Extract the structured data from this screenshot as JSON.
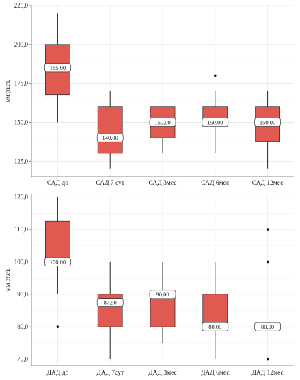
{
  "chart_data": [
    {
      "type": "boxplot",
      "ylabel": "мм рт.ст.",
      "ylim": [
        115,
        225
      ],
      "yticks": [
        125,
        150,
        175,
        200,
        225
      ],
      "ytick_labels": [
        "125,0",
        "150,0",
        "175,0",
        "200,0",
        "225,0"
      ],
      "grid": true,
      "box_color": "#e05a52",
      "categories": [
        "САД до",
        "САД 7 сут",
        "САД 3мес",
        "САД 6мес",
        "САД 12мес"
      ],
      "boxes": [
        {
          "whisker_low": 150,
          "q1": 167.5,
          "median": 185,
          "q3": 200,
          "whisker_high": 220,
          "outliers": [],
          "median_label": "185,00"
        },
        {
          "whisker_low": 120,
          "q1": 130,
          "median": 140,
          "q3": 160,
          "whisker_high": 170,
          "outliers": [],
          "median_label": "140,00"
        },
        {
          "whisker_low": 130,
          "q1": 140,
          "median": 150,
          "q3": 160,
          "whisker_high": 160,
          "outliers": [],
          "median_label": "150,00"
        },
        {
          "whisker_low": 130,
          "q1": 147.5,
          "median": 150,
          "q3": 160,
          "whisker_high": 170,
          "outliers": [
            180
          ],
          "median_label": "150,00"
        },
        {
          "whisker_low": 120,
          "q1": 137.5,
          "median": 150,
          "q3": 160,
          "whisker_high": 170,
          "outliers": [],
          "median_label": "150,00"
        }
      ]
    },
    {
      "type": "boxplot",
      "ylabel": "мм рт.ст.",
      "ylim": [
        68,
        121
      ],
      "yticks": [
        70,
        80,
        90,
        100,
        110,
        120
      ],
      "ytick_labels": [
        "70,0",
        "80,0",
        "90,0",
        "100,0",
        "110,0",
        "120,0"
      ],
      "grid": true,
      "box_color": "#e05a52",
      "categories": [
        "ДАД до",
        "ДАД 7сут",
        "ДАД 3мес",
        "ДАД 6мес",
        "ДАД 12мес"
      ],
      "boxes": [
        {
          "whisker_low": 90,
          "q1": 100,
          "median": 100,
          "q3": 112.5,
          "whisker_high": 120,
          "outliers": [
            80
          ],
          "median_label": "100,00"
        },
        {
          "whisker_low": 70,
          "q1": 80,
          "median": 87.5,
          "q3": 90,
          "whisker_high": 100,
          "outliers": [],
          "median_label": "87,50"
        },
        {
          "whisker_low": 75,
          "q1": 80,
          "median": 90,
          "q3": 90,
          "whisker_high": 100,
          "outliers": [],
          "median_label": "90,00"
        },
        {
          "whisker_low": 70,
          "q1": 80,
          "median": 80,
          "q3": 90,
          "whisker_high": 100,
          "outliers": [],
          "median_label": "80,00"
        },
        {
          "whisker_low": 80,
          "q1": 80,
          "median": 80,
          "q3": 80,
          "whisker_high": 80,
          "outliers": [
            70,
            100,
            110
          ],
          "median_label": "80,00"
        }
      ]
    }
  ]
}
